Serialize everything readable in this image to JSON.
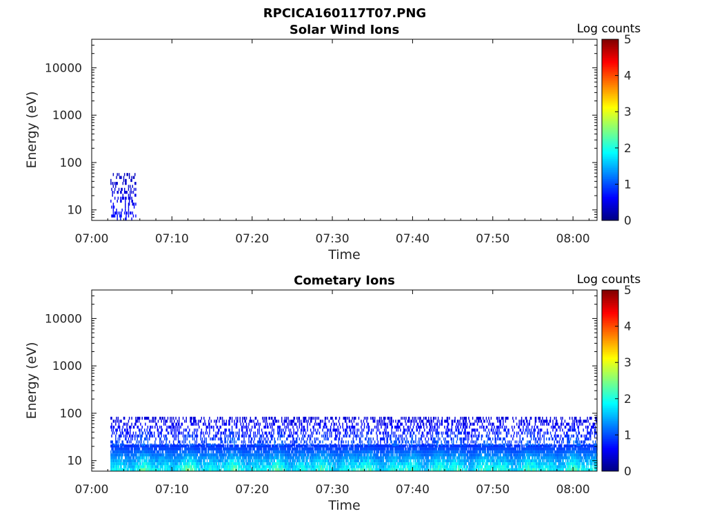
{
  "figure_title": "RPCICA160117T07.PNG",
  "chart_data": [
    {
      "type": "heatmap",
      "title": "Solar Wind Ions",
      "xlabel": "Time",
      "ylabel": "Energy (eV)",
      "x_ticks": [
        "07:00",
        "07:10",
        "07:20",
        "07:30",
        "07:40",
        "07:50",
        "08:00"
      ],
      "x_range": [
        "07:00",
        "08:03"
      ],
      "y_scale": "log",
      "y_ticks": [
        10,
        100,
        1000,
        10000
      ],
      "y_tick_labels": [
        "10",
        "100",
        "1000",
        "10000"
      ],
      "y_range": [
        6,
        40000
      ],
      "colorbar": {
        "label": "Log counts",
        "ticks": [
          0,
          1,
          2,
          3,
          4,
          5
        ],
        "tick_labels": [
          "0",
          "1",
          "2",
          "3",
          "4",
          "5"
        ],
        "range": [
          0,
          5
        ],
        "colormap": "jet"
      },
      "activity": [
        {
          "start": "07:02:20",
          "end": "07:05:30",
          "e_min": 6,
          "e_max": 55,
          "level": [
            0.3,
            1.0
          ],
          "density": 0.3
        }
      ]
    },
    {
      "type": "heatmap",
      "title": "Cometary Ions",
      "xlabel": "Time",
      "ylabel": "Energy (eV)",
      "x_ticks": [
        "07:00",
        "07:10",
        "07:20",
        "07:30",
        "07:40",
        "07:50",
        "08:00"
      ],
      "x_range": [
        "07:00",
        "08:03"
      ],
      "y_scale": "log",
      "y_ticks": [
        10,
        100,
        1000,
        10000
      ],
      "y_tick_labels": [
        "10",
        "100",
        "1000",
        "10000"
      ],
      "y_range": [
        6,
        40000
      ],
      "colorbar": {
        "label": "Log counts",
        "ticks": [
          0,
          1,
          2,
          3,
          4,
          5
        ],
        "tick_labels": [
          "0",
          "1",
          "2",
          "3",
          "4",
          "5"
        ],
        "range": [
          0,
          5
        ],
        "colormap": "jet"
      },
      "activity": [
        {
          "start": "07:02:20",
          "end": "08:03:00",
          "e_min": 6,
          "e_max": 20,
          "level": [
            0.8,
            2.6
          ],
          "density": 0.9
        },
        {
          "start": "07:02:20",
          "end": "08:03:00",
          "e_min": 20,
          "e_max": 80,
          "level": [
            0.4,
            1.4
          ],
          "density": 0.35
        }
      ]
    }
  ]
}
